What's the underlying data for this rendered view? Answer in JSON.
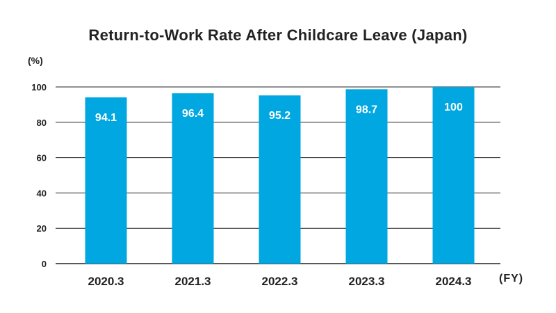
{
  "chart_data": {
    "type": "bar",
    "title": "Return-to-Work Rate After Childcare Leave (Japan)",
    "ylabel": "(%)",
    "xlabel": "(FY)",
    "categories": [
      "2020.3",
      "2021.3",
      "2022.3",
      "2023.3",
      "2024.3"
    ],
    "values": [
      94.1,
      96.4,
      95.2,
      98.7,
      100
    ],
    "data_labels": [
      "94.1",
      "96.4",
      "95.2",
      "98.7",
      "100"
    ],
    "yticks": [
      0,
      20,
      40,
      60,
      80,
      100
    ],
    "ylim": [
      0,
      100
    ],
    "grid": true,
    "bar_color": "#00a7e1",
    "grid_color": "#222222"
  }
}
